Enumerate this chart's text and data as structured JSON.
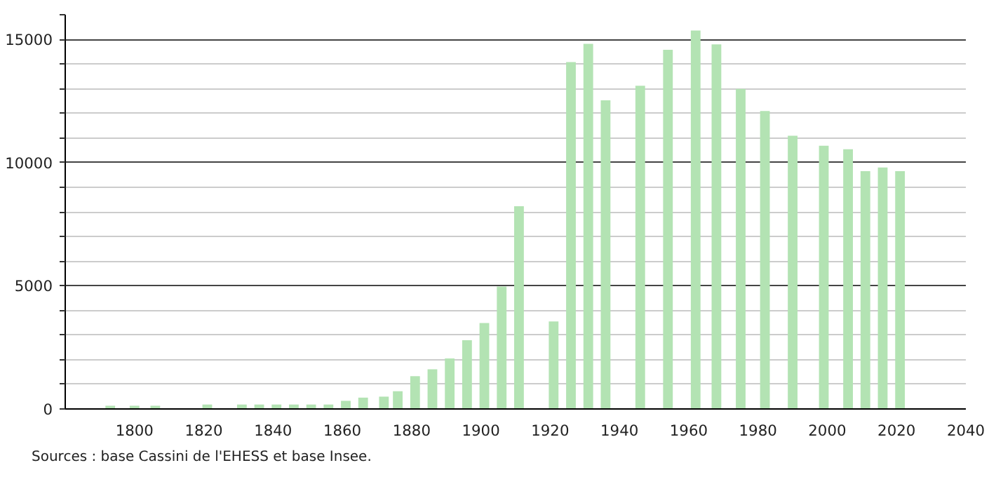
{
  "chart_data": {
    "type": "bar",
    "color": "#b3e3b3",
    "x": [
      1793,
      1800,
      1806,
      1821,
      1831,
      1836,
      1841,
      1846,
      1851,
      1856,
      1861,
      1866,
      1872,
      1876,
      1881,
      1886,
      1891,
      1896,
      1901,
      1906,
      1911,
      1921,
      1926,
      1931,
      1936,
      1946,
      1954,
      1962,
      1968,
      1975,
      1982,
      1990,
      1999,
      2006,
      2011,
      2016,
      2021
    ],
    "values": [
      130,
      130,
      130,
      180,
      180,
      180,
      180,
      180,
      180,
      180,
      330,
      460,
      500,
      720,
      1330,
      1610,
      2050,
      2790,
      3490,
      4970,
      8230,
      3550,
      14080,
      14820,
      12530,
      13120,
      14580,
      15360,
      14800,
      12990,
      12090,
      11090,
      10680,
      10540,
      9650,
      9800,
      9650
    ],
    "xlim": [
      1780,
      2040
    ],
    "ylim": [
      0,
      16000
    ],
    "xticks": [
      1800,
      1820,
      1840,
      1860,
      1880,
      1900,
      1920,
      1940,
      1960,
      1980,
      2000,
      2020,
      2040
    ],
    "yticks": [
      0,
      {
        "value": 1000,
        "label": null
      },
      {
        "value": 2000,
        "label": null
      },
      {
        "value": 3000,
        "label": null
      },
      {
        "value": 4000,
        "label": null
      },
      5000,
      {
        "value": 6000,
        "label": null
      },
      {
        "value": 7000,
        "label": null
      },
      {
        "value": 8000,
        "label": null
      },
      {
        "value": 9000,
        "label": null
      },
      10000,
      {
        "value": 11000,
        "label": null
      },
      {
        "value": 12000,
        "label": null
      },
      {
        "value": 13000,
        "label": null
      },
      {
        "value": 14000,
        "label": null
      },
      15000,
      {
        "value": 16000,
        "label": null
      }
    ],
    "grid": "y",
    "annotations": [
      "Sources : base Cassini de l'EHESS et base Insee."
    ]
  }
}
